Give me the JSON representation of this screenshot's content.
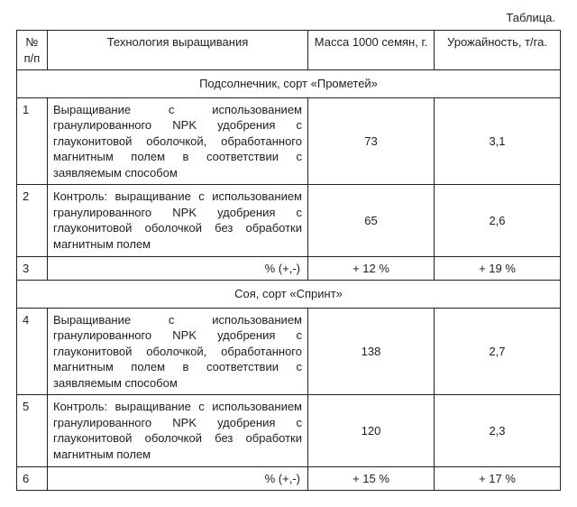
{
  "caption": "Таблица.",
  "headers": {
    "num": "№ п/п",
    "tech": "Технология выращивания",
    "mass": "Масса 1000 семян, г.",
    "yield": "Урожайность, т/га."
  },
  "section1": "Подсолнечник, сорт «Прометей»",
  "section2": "Соя, сорт «Спринт»",
  "rows": {
    "r1": {
      "num": "1",
      "tech": "Выращивание с использованием гранулированного NPK удобрения с глауконитовой оболочкой, обработанного магнитным полем в соответствии с заявляемым способом",
      "mass": "73",
      "yield": "3,1"
    },
    "r2": {
      "num": "2",
      "tech": "Контроль: выращивание с использованием гранулированного NPK удобрения с глауконитовой оболочкой без обработки магнитным полем",
      "mass": "65",
      "yield": "2,6"
    },
    "r3": {
      "num": "3",
      "tech": "% (+,-)",
      "mass": "+ 12 %",
      "yield": "+ 19 %"
    },
    "r4": {
      "num": "4",
      "tech": "Выращивание с использованием гранулированного NPK удобрения с глауконитовой оболочкой, обработанного магнитным полем в соответствии с заявляемым способом",
      "mass": "138",
      "yield": "2,7"
    },
    "r5": {
      "num": "5",
      "tech": "Контроль: выращивание с использованием гранулированного NPK удобрения с глауконитовой оболочкой без обработки магнитным полем",
      "mass": "120",
      "yield": "2,3"
    },
    "r6": {
      "num": "6",
      "tech": "% (+,-)",
      "mass": "+ 15 %",
      "yield": "+ 17 %"
    }
  }
}
